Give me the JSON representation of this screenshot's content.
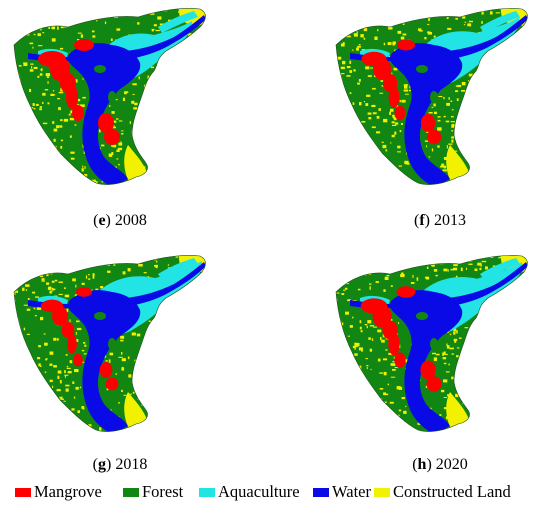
{
  "panels": [
    {
      "letter": "e",
      "year": "2008"
    },
    {
      "letter": "f",
      "year": "2013"
    },
    {
      "letter": "g",
      "year": "2018"
    },
    {
      "letter": "h",
      "year": "2020"
    }
  ],
  "legend": [
    {
      "label": "Mangrove",
      "color": "#ff0000"
    },
    {
      "label": "Forest",
      "color": "#128612"
    },
    {
      "label": "Aquaculture",
      "color": "#22e4e4"
    },
    {
      "label": "Water",
      "color": "#0a0ae6"
    },
    {
      "label": "Constructed Land",
      "color": "#f2f200"
    }
  ]
}
